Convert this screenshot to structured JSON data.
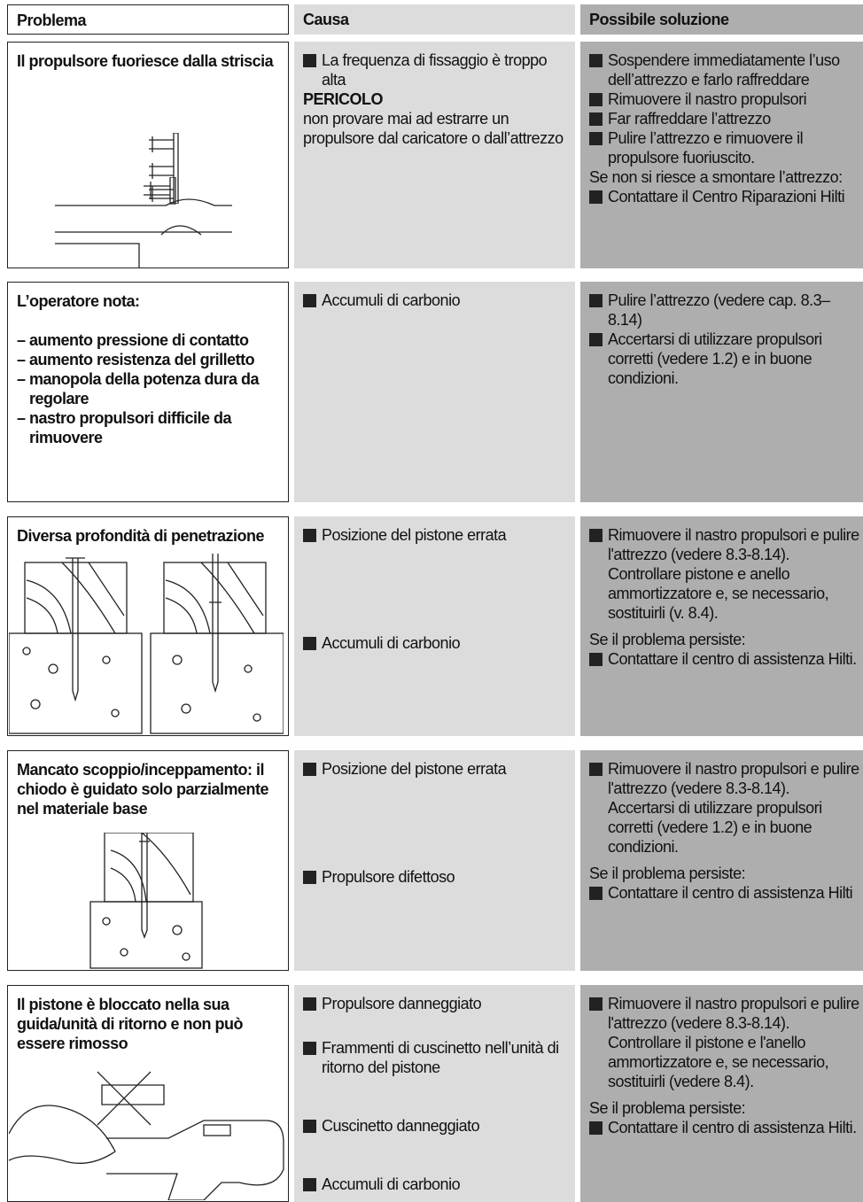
{
  "header": {
    "problema": "Problema",
    "causa": "Causa",
    "soluzione": "Possibile soluzione"
  },
  "rows": [
    {
      "problem": [
        "Il propulsore fuoriesce dalla striscia"
      ],
      "causes": [
        {
          "kind": "bullet",
          "text": "La frequenza di fissaggio è troppo alta"
        },
        {
          "kind": "heading",
          "text": "PERICOLO"
        },
        {
          "kind": "plain",
          "text": "non provare mai ad estrarre un propulsore dal caricatore o dall’attrezzo"
        }
      ],
      "solutions": [
        {
          "kind": "bullet",
          "text": "Sospendere immediatamente l’uso dell’attrezzo e farlo raffreddare"
        },
        {
          "kind": "bullet",
          "text": "Rimuovere il nastro propulsori"
        },
        {
          "kind": "bullet",
          "text": "Far raffreddare l’attrezzo"
        },
        {
          "kind": "bullet",
          "text": "Pulire l’attrezzo e rimuovere il propulsore fuoriuscito."
        },
        {
          "kind": "plain",
          "text": "Se non si riesce a smontare l’attrezzo:"
        },
        {
          "kind": "bullet",
          "text": "Contattare il Centro Riparazioni Hilti"
        }
      ]
    },
    {
      "problem": [
        "L’operatore nota:",
        "– aumento pressione di contatto",
        "– aumento resistenza del grilletto",
        "– manopola della potenza dura da regolare",
        "– nastro propulsori difficile da rimuovere"
      ],
      "causes": [
        {
          "kind": "bullet",
          "text": "Accumuli di carbonio"
        }
      ],
      "solutions": [
        {
          "kind": "bullet",
          "text": "Pulire l’attrezzo (vedere cap. 8.3–8.14)"
        },
        {
          "kind": "bullet",
          "text": "Accertarsi di utilizzare propulsori corretti (vedere 1.2) e in buone condizioni."
        }
      ]
    },
    {
      "problem": [
        "Diversa profondità di penetrazione"
      ],
      "causes": [
        {
          "kind": "bullet",
          "text": "Posizione del pistone errata"
        },
        {
          "kind": "bullet",
          "text": "Accumuli di carbonio"
        }
      ],
      "solutions": [
        {
          "kind": "bullet",
          "text": "Rimuovere il nastro propulsori e pulire l'attrezzo (vedere 8.3-8.14)."
        },
        {
          "kind": "cont",
          "text": "Controllare pistone e anello ammortizzatore e, se necessario, sostituirli (v. 8.4)."
        },
        {
          "kind": "plain",
          "text": "Se il problema persiste:"
        },
        {
          "kind": "bullet",
          "text": "Contattare il centro di assistenza Hilti."
        }
      ]
    },
    {
      "problem": [
        "Mancato scoppio/inceppamento: il chiodo è guidato solo parzialmente nel materiale base"
      ],
      "causes": [
        {
          "kind": "bullet",
          "text": "Posizione del pistone errata"
        },
        {
          "kind": "bullet",
          "text": "Propulsore difettoso"
        }
      ],
      "solutions": [
        {
          "kind": "bullet",
          "text": "Rimuovere il nastro propulsori e pulire l'attrezzo (vedere 8.3-8.14)."
        },
        {
          "kind": "cont",
          "text": "Accertarsi di utilizzare propulsori corretti (vedere 1.2) e in buone condizioni."
        },
        {
          "kind": "plain",
          "text": "Se il problema persiste:"
        },
        {
          "kind": "bullet",
          "text": "Contattare il centro di assistenza Hilti"
        }
      ]
    },
    {
      "problem": [
        "Il pistone è bloccato nella sua guida/unità di ritorno e non può essere rimosso"
      ],
      "causes": [
        {
          "kind": "bullet",
          "text": "Propulsore danneggiato"
        },
        {
          "kind": "bullet",
          "text": "Frammenti di cuscinetto nell’unità di ritorno del pistone"
        },
        {
          "kind": "bullet",
          "text": "Cuscinetto danneggiato"
        },
        {
          "kind": "bullet",
          "text": "Accumuli di carbonio"
        }
      ],
      "solutions": [
        {
          "kind": "bullet",
          "text": "Rimuovere il nastro propulsori e pulire l'attrezzo (vedere 8.3-8.14)."
        },
        {
          "kind": "cont",
          "text": "Controllare il pistone e l'anello ammortizzatore e, se necessario, sostituirli (vedere 8.4)."
        },
        {
          "kind": "plain",
          "text": "Se il problema persiste:"
        },
        {
          "kind": "bullet",
          "text": "Contattare il centro di assistenza Hilti."
        }
      ]
    }
  ]
}
